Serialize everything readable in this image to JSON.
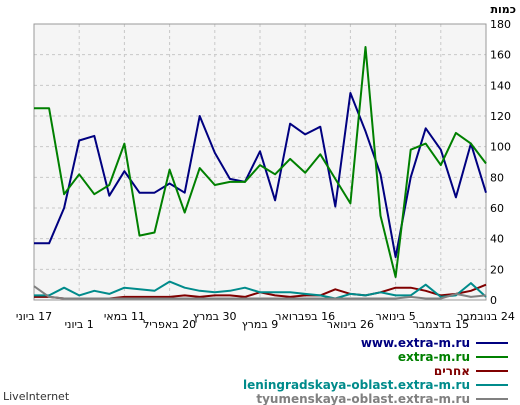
{
  "chart_data": {
    "type": "line",
    "ylabel": "כמות",
    "ylim": [
      0,
      180
    ],
    "yticks": [
      0,
      20,
      40,
      60,
      80,
      100,
      120,
      140,
      160,
      180
    ],
    "grid": true,
    "legend_position": "bottom-right",
    "x_tick_labels": [
      "24 בנובמבר",
      "15 בדצמבר",
      "5 בינואר",
      "26 בינואר",
      "16 בפברואר",
      "9 במרץ",
      "30 במרץ",
      "20 באפריל",
      "11 במאי",
      "1 ביוני",
      "17 ביוני"
    ],
    "x_tick_positions": [
      0,
      3,
      6,
      9,
      12,
      15,
      18,
      21,
      24,
      27,
      30
    ],
    "x": [
      0,
      1,
      2,
      3,
      4,
      5,
      6,
      7,
      8,
      9,
      10,
      11,
      12,
      13,
      14,
      15,
      16,
      17,
      18,
      19,
      20,
      21,
      22,
      23,
      24,
      25,
      26,
      27,
      28,
      29,
      30
    ],
    "series": [
      {
        "name": "www.extra-m.ru",
        "color": "#000080",
        "values": [
          70,
          102,
          67,
          98,
          112,
          80,
          28,
          82,
          110,
          135,
          61,
          113,
          108,
          115,
          65,
          97,
          77,
          79,
          96,
          120,
          70,
          76,
          70,
          70,
          84,
          68,
          107,
          104,
          60,
          37,
          37
        ]
      },
      {
        "name": "extra-m.ru",
        "color": "#008000",
        "values": [
          89,
          102,
          109,
          88,
          102,
          98,
          15,
          55,
          165,
          63,
          79,
          95,
          83,
          92,
          82,
          88,
          77,
          77,
          75,
          86,
          57,
          85,
          44,
          42,
          102,
          75,
          69,
          82,
          69,
          125,
          125
        ]
      },
      {
        "name": "אחרים",
        "color": "#800000",
        "values": [
          10,
          6,
          4,
          3,
          6,
          8,
          8,
          5,
          3,
          4,
          7,
          3,
          3,
          2,
          3,
          5,
          2,
          3,
          3,
          2,
          3,
          2,
          2,
          2,
          2,
          1,
          1,
          1,
          1,
          2,
          2
        ]
      },
      {
        "name": "leningradskaya-oblast.extra-m.ru",
        "color": "#008b8b",
        "values": [
          2,
          11,
          3,
          2,
          10,
          3,
          3,
          5,
          3,
          4,
          1,
          3,
          4,
          5,
          5,
          5,
          8,
          6,
          5,
          6,
          8,
          12,
          6,
          7,
          8,
          4,
          6,
          3,
          8,
          3,
          3
        ]
      },
      {
        "name": "tyumenskaya-oblast.extra-m.ru",
        "color": "#808080",
        "values": [
          3,
          2,
          4,
          1,
          1,
          2,
          1,
          1,
          1,
          1,
          1,
          1,
          1,
          1,
          1,
          1,
          1,
          1,
          1,
          1,
          1,
          1,
          1,
          1,
          1,
          1,
          1,
          1,
          1,
          2,
          9
        ]
      }
    ]
  },
  "footer": {
    "brand": "LiveInternet"
  }
}
